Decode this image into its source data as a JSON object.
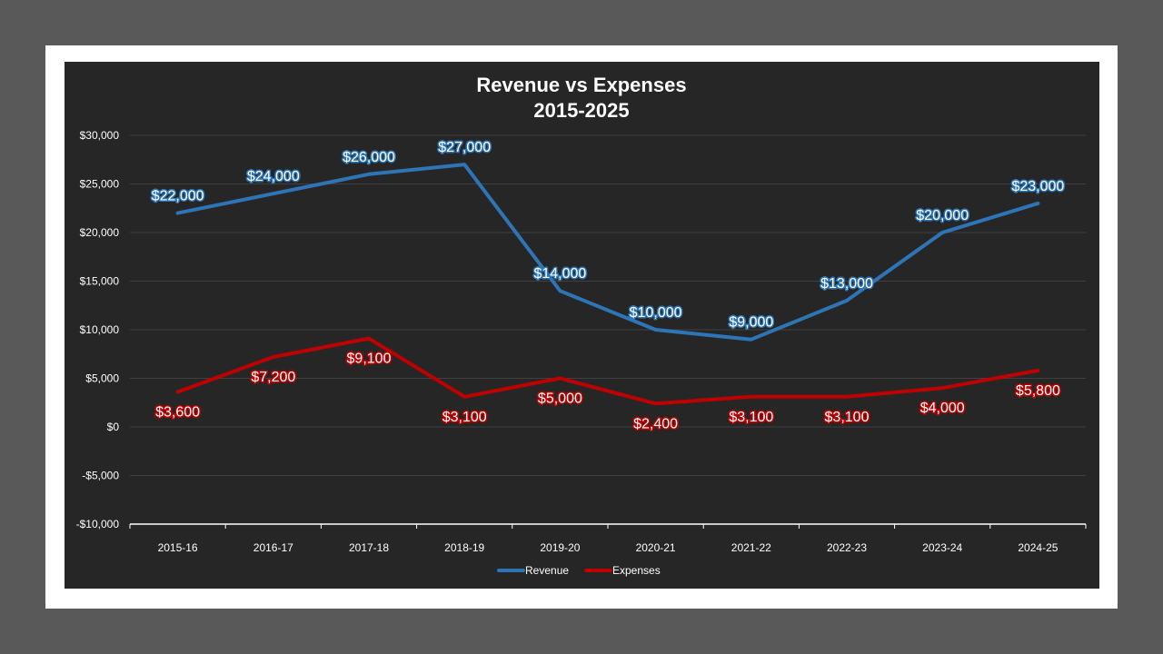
{
  "chart_data": {
    "type": "line",
    "title": [
      "Revenue vs Expenses",
      "2015-2025"
    ],
    "categories": [
      "2015-16",
      "2016-17",
      "2017-18",
      "2018-19",
      "2019-20",
      "2020-21",
      "2021-22",
      "2022-23",
      "2023-24",
      "2024-25"
    ],
    "series": [
      {
        "name": "Revenue",
        "color": "#2E75B6",
        "values": [
          22000,
          24000,
          26000,
          27000,
          14000,
          10000,
          9000,
          13000,
          20000,
          23000
        ],
        "labels": [
          "$22,000",
          "$24,000",
          "$26,000",
          "$27,000",
          "$14,000",
          "$10,000",
          "$9,000",
          "$13,000",
          "$20,000",
          "$23,000"
        ]
      },
      {
        "name": "Expenses",
        "color": "#C00000",
        "values": [
          3600,
          7200,
          9100,
          3100,
          5000,
          2400,
          3100,
          3100,
          4000,
          5800
        ],
        "labels": [
          "$3,600",
          "$7,200",
          "$9,100",
          "$3,100",
          "$5,000",
          "$2,400",
          "$3,100",
          "$3,100",
          "$4,000",
          "$5,800"
        ]
      }
    ],
    "ylim": [
      -10000,
      30000
    ],
    "yticks": [
      -10000,
      -5000,
      0,
      5000,
      10000,
      15000,
      20000,
      25000,
      30000
    ],
    "ytick_labels": [
      "-$10,000",
      "-$5,000",
      "$0",
      "$5,000",
      "$10,000",
      "$15,000",
      "$20,000",
      "$25,000",
      "$30,000"
    ],
    "grid": true,
    "legend_position": "bottom",
    "background": "#262626"
  }
}
